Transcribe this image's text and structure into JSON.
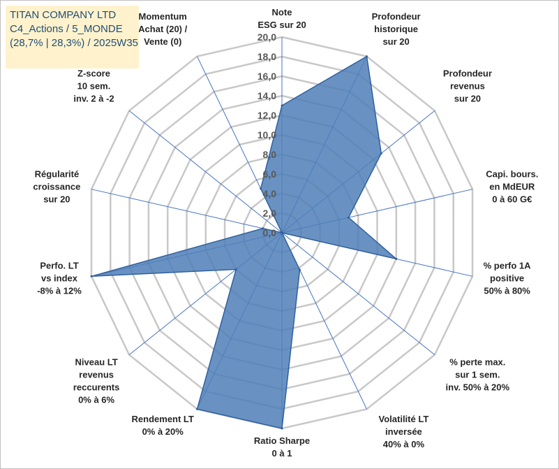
{
  "header": {
    "line1": "TITAN COMPANY LTD",
    "line2": "C4_Actions / 5_MONDE",
    "line3": "(28,7% | 28,3%) / 2025W35"
  },
  "colors": {
    "fill": "#4f7fb8",
    "stroke": "#2f5f9e",
    "grid": "#c8c8c8",
    "spoke": "#4472c4"
  },
  "chart_data": {
    "type": "radar",
    "rmin": 0,
    "rmax": 20,
    "step": 2,
    "grid": true,
    "tick_labels": [
      "0,0",
      "2,0",
      "4,0",
      "6,0",
      "8,0",
      "10,0",
      "12,0",
      "14,0",
      "16,0",
      "18,0",
      "20,0"
    ],
    "axes": [
      {
        "label": [
          "Note",
          "ESG sur 20"
        ],
        "value": 13
      },
      {
        "label": [
          "Profondeur",
          "historique",
          "sur 20"
        ],
        "value": 20
      },
      {
        "label": [
          "Profondeur",
          "revenus",
          "sur 20"
        ],
        "value": 13
      },
      {
        "label": [
          "Capi. bours.",
          "en MdEUR",
          "0 à 60 G€"
        ],
        "value": 7
      },
      {
        "label": [
          "% perfo 1A",
          "positive",
          "50% à 80%"
        ],
        "value": 12
      },
      {
        "label": [
          "% perte max.",
          "sur 1 sem.",
          "inv. 50% à 20%"
        ],
        "value": 0
      },
      {
        "label": [
          "Volatilité LT",
          "inversée",
          "40% à 0%"
        ],
        "value": 4.2
      },
      {
        "label": [
          "Ratio Sharpe",
          "0 à 1"
        ],
        "value": 20
      },
      {
        "label": [
          "Rendement LT",
          "0% à 20%"
        ],
        "value": 20
      },
      {
        "label": [
          "Niveau LT",
          "revenus",
          "reccurents",
          "0% à 6%"
        ],
        "value": 6
      },
      {
        "label": [
          "Perfo. LT",
          "vs index",
          "-8% à 12%"
        ],
        "value": 20
      },
      {
        "label": [
          "Régularité",
          "croissance",
          "sur 20"
        ],
        "value": 2
      },
      {
        "label": [
          "Z-score",
          "10 sem.",
          "inv. 2 à -2"
        ],
        "value": 0
      },
      {
        "label": [
          "Momentum",
          "Achat (20) /",
          "Vente (0)"
        ],
        "value": 5
      }
    ]
  }
}
